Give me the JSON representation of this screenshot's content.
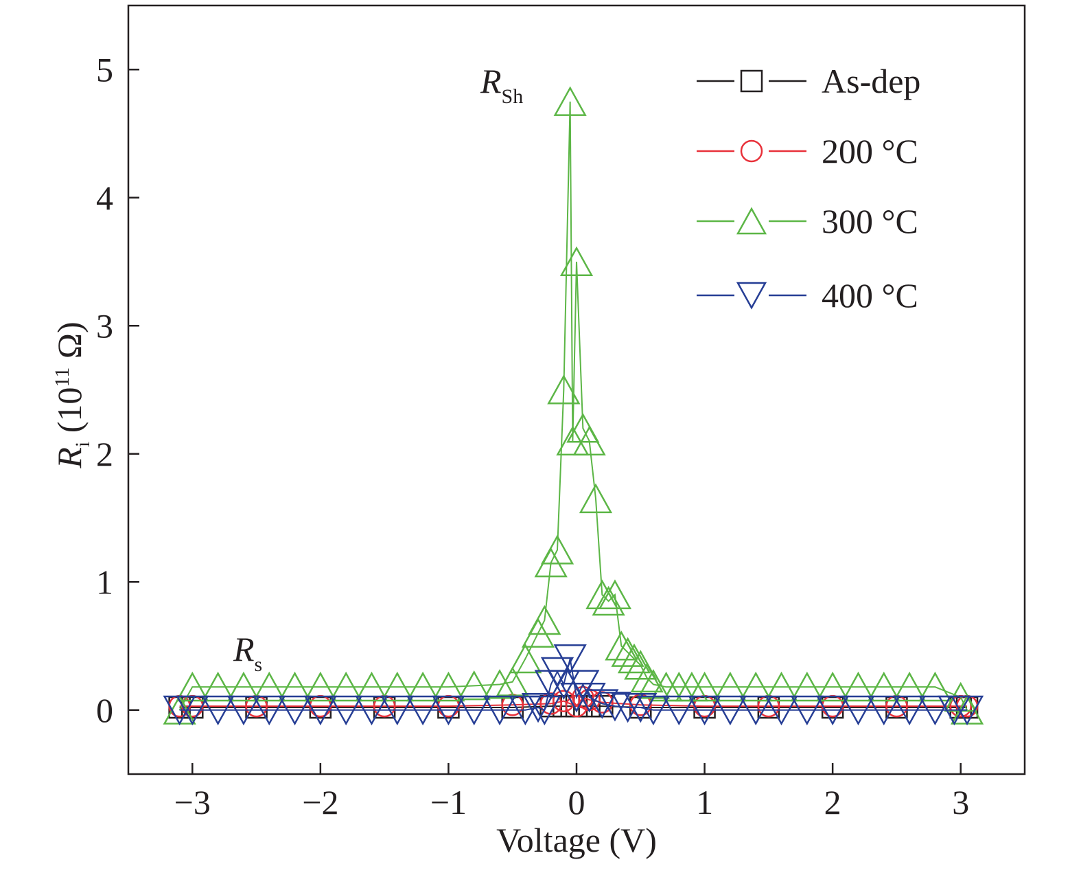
{
  "chart_data": {
    "type": "scatter",
    "xlabel": "Voltage (V)",
    "ylabel_main": "R",
    "ylabel_sub": "i",
    "ylabel_rest_pre": " (10",
    "ylabel_exp": "11",
    "ylabel_rest_post": " Ω)",
    "xlim": [
      -3.5,
      3.5
    ],
    "ylim": [
      -0.5,
      5.5
    ],
    "x_ticks": [
      -3,
      -2,
      -1,
      0,
      1,
      2,
      3
    ],
    "x_tick_labels": [
      "−3",
      "−2",
      "−1",
      "0",
      "1",
      "2",
      "3"
    ],
    "y_ticks": [
      0,
      1,
      2,
      3,
      4,
      5
    ],
    "y_tick_labels": [
      "0",
      "1",
      "2",
      "3",
      "4",
      "5"
    ],
    "grid": false,
    "legend_position": "top-right",
    "annotations": [
      {
        "main": "R",
        "sub": "Sh",
        "x": -0.45,
        "y": 4.85
      },
      {
        "main": "R",
        "sub": "s",
        "x": -2.65,
        "y": 0.4
      }
    ],
    "series": [
      {
        "name": "As-dep",
        "color": "#231f20",
        "marker": "square",
        "x": [
          -3.1,
          -3.0,
          -2.5,
          -2.0,
          -1.5,
          -1.0,
          -0.5,
          -0.2,
          -0.1,
          0.0,
          0.1,
          0.2,
          0.5,
          1.0,
          1.5,
          2.0,
          2.5,
          3.0,
          3.05
        ],
        "y": [
          0.02,
          0.02,
          0.02,
          0.02,
          0.02,
          0.02,
          0.02,
          0.03,
          0.03,
          0.03,
          0.03,
          0.03,
          0.02,
          0.02,
          0.02,
          0.02,
          0.02,
          0.02,
          0.02
        ]
      },
      {
        "name": "200 °C",
        "color": "#e8313a",
        "marker": "circle",
        "x": [
          -3.1,
          -3.0,
          -2.5,
          -2.0,
          -1.5,
          -1.0,
          -0.5,
          -0.2,
          -0.1,
          0.0,
          0.05,
          0.1,
          0.2,
          0.5,
          1.0,
          1.5,
          2.0,
          2.5,
          3.0,
          3.05
        ],
        "y": [
          0.03,
          0.03,
          0.03,
          0.03,
          0.03,
          0.03,
          0.04,
          0.05,
          0.07,
          0.03,
          0.1,
          0.08,
          0.06,
          0.04,
          0.03,
          0.03,
          0.03,
          0.03,
          0.03,
          0.03
        ]
      },
      {
        "name": "300 °C",
        "color": "#5cb646",
        "marker": "triangle-up",
        "x": [
          -3.1,
          -3.0,
          -2.8,
          -2.6,
          -2.4,
          -2.2,
          -2.0,
          -1.8,
          -1.6,
          -1.4,
          -1.2,
          -1.0,
          -0.8,
          -0.6,
          -0.5,
          -0.4,
          -0.3,
          -0.25,
          -0.2,
          -0.15,
          -0.1,
          -0.05,
          -0.03,
          0.0,
          0.05,
          0.1,
          0.15,
          0.2,
          0.25,
          0.3,
          0.35,
          0.4,
          0.45,
          0.5,
          0.55,
          0.6,
          0.7,
          0.8,
          0.9,
          1.0,
          1.2,
          1.4,
          1.6,
          1.8,
          2.0,
          2.2,
          2.4,
          2.6,
          2.8,
          3.0,
          3.05
        ],
        "y": [
          0.0,
          0.18,
          0.18,
          0.18,
          0.18,
          0.18,
          0.18,
          0.18,
          0.18,
          0.18,
          0.18,
          0.18,
          0.19,
          0.2,
          0.22,
          0.4,
          0.6,
          0.7,
          1.15,
          1.25,
          2.5,
          4.75,
          2.1,
          3.5,
          2.2,
          2.1,
          1.65,
          0.9,
          0.85,
          0.9,
          0.5,
          0.45,
          0.4,
          0.35,
          0.25,
          0.2,
          0.18,
          0.18,
          0.18,
          0.18,
          0.18,
          0.18,
          0.18,
          0.18,
          0.18,
          0.18,
          0.18,
          0.18,
          0.18,
          0.1,
          0.0
        ]
      },
      {
        "name": "400 °C",
        "color": "#263e95",
        "marker": "triangle-down",
        "x": [
          -3.1,
          -3.0,
          -2.8,
          -2.6,
          -2.4,
          -2.2,
          -2.0,
          -1.8,
          -1.6,
          -1.4,
          -1.2,
          -1.0,
          -0.8,
          -0.6,
          -0.4,
          -0.3,
          -0.25,
          -0.2,
          -0.15,
          -0.1,
          -0.05,
          0.0,
          0.05,
          0.1,
          0.2,
          0.3,
          0.4,
          0.5,
          0.6,
          0.8,
          1.0,
          1.2,
          1.4,
          1.6,
          1.8,
          2.0,
          2.2,
          2.4,
          2.6,
          2.8,
          2.95,
          3.05
        ],
        "y": [
          0.0,
          0.0,
          0.0,
          0.0,
          0.0,
          0.0,
          0.0,
          0.0,
          0.0,
          0.0,
          0.0,
          0.0,
          0.0,
          0.0,
          0.0,
          0.02,
          0.0,
          0.2,
          0.3,
          0.2,
          0.4,
          0.1,
          0.2,
          0.1,
          0.05,
          0.03,
          0.02,
          0.02,
          0.0,
          0.0,
          0.0,
          0.0,
          0.0,
          0.0,
          0.0,
          0.0,
          0.0,
          0.0,
          0.0,
          0.0,
          0.0,
          0.0
        ]
      }
    ]
  }
}
